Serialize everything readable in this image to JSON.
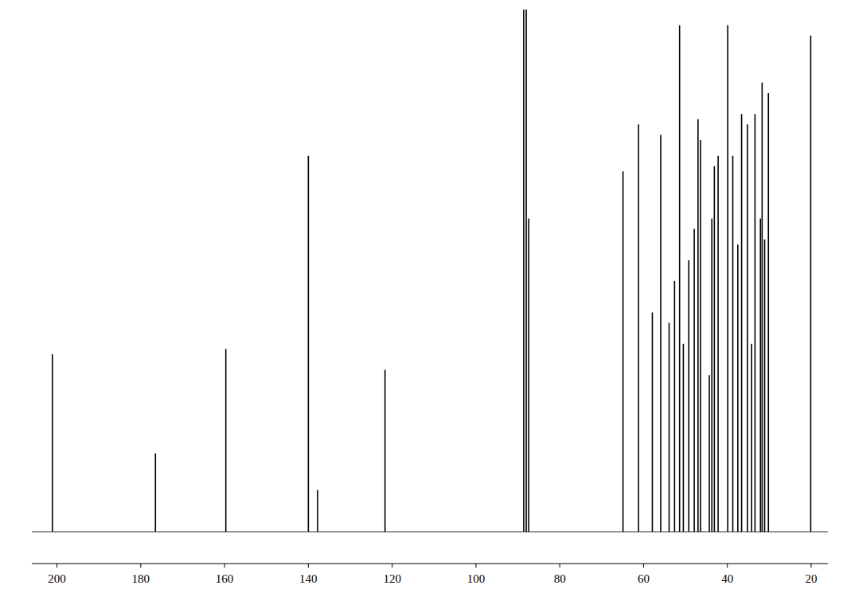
{
  "chart_data": {
    "type": "stem",
    "x": [
      201.1,
      176.5,
      159.7,
      140.0,
      137.8,
      121.7,
      88.6,
      88.0,
      87.4,
      64.9,
      61.2,
      57.9,
      55.9,
      53.9,
      52.6,
      51.4,
      50.5,
      49.2,
      47.9,
      47.0,
      46.4,
      44.3,
      43.7,
      43.1,
      42.2,
      39.9,
      38.7,
      37.5,
      36.6,
      35.2,
      34.2,
      33.4,
      32.1,
      31.7,
      31.1,
      30.2,
      20.1
    ],
    "values": [
      34,
      15,
      35,
      72,
      8,
      31,
      100,
      100,
      60,
      69,
      78,
      42,
      76,
      40,
      48,
      97,
      36,
      52,
      58,
      79,
      75,
      30,
      60,
      70,
      72,
      97,
      72,
      55,
      80,
      78,
      36,
      80,
      60,
      86,
      56,
      84,
      95
    ],
    "color": "#000000",
    "xlim": [
      206,
      16
    ],
    "xticks": [
      200,
      180,
      160,
      140,
      120,
      100,
      80,
      60,
      40,
      20
    ],
    "ylim": [
      0,
      100
    ],
    "tick_labels": "x",
    "grid": false
  }
}
